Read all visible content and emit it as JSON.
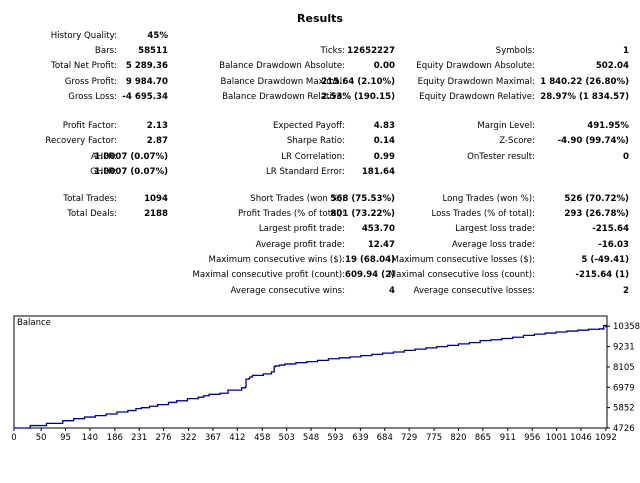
{
  "title": "Results",
  "stats": {
    "history_quality": {
      "label": "History Quality:",
      "value": "45%"
    },
    "bars": {
      "label": "Bars:",
      "value": "58511"
    },
    "ticks": {
      "label": "Ticks:",
      "value": "12652227"
    },
    "symbols": {
      "label": "Symbols:",
      "value": "1"
    },
    "total_net_profit": {
      "label": "Total Net Profit:",
      "value": "5 289.36"
    },
    "balance_dd_absolute": {
      "label": "Balance Drawdown Absolute:",
      "value": "0.00"
    },
    "equity_dd_absolute": {
      "label": "Equity Drawdown Absolute:",
      "value": "502.04"
    },
    "gross_profit": {
      "label": "Gross Profit:",
      "value": "9 984.70"
    },
    "balance_dd_maximal": {
      "label": "Balance Drawdown Maximal:",
      "value": "215.64 (2.10%)"
    },
    "equity_dd_maximal": {
      "label": "Equity Drawdown Maximal:",
      "value": "1 840.22 (26.80%)"
    },
    "gross_loss": {
      "label": "Gross Loss:",
      "value": "-4 695.34"
    },
    "balance_dd_relative": {
      "label": "Balance Drawdown Relative:",
      "value": "2.53% (190.15)"
    },
    "equity_dd_relative": {
      "label": "Equity Drawdown Relative:",
      "value": "28.97% (1 834.57)"
    },
    "profit_factor": {
      "label": "Profit Factor:",
      "value": "2.13"
    },
    "expected_payoff": {
      "label": "Expected Payoff:",
      "value": "4.83"
    },
    "margin_level": {
      "label": "Margin Level:",
      "value": "491.95%"
    },
    "recovery_factor": {
      "label": "Recovery Factor:",
      "value": "2.87"
    },
    "sharpe_ratio": {
      "label": "Sharpe Ratio:",
      "value": "0.14"
    },
    "z_score": {
      "label": "Z-Score:",
      "value": "-4.90 (99.74%)"
    },
    "ahpr": {
      "label": "AHPR:",
      "value": "1.0007 (0.07%)"
    },
    "lr_correlation": {
      "label": "LR Correlation:",
      "value": "0.99"
    },
    "ontester_result": {
      "label": "OnTester result:",
      "value": "0"
    },
    "ghpr": {
      "label": "GHPR:",
      "value": "1.0007 (0.07%)"
    },
    "lr_standard_error": {
      "label": "LR Standard Error:",
      "value": "181.64"
    },
    "total_trades": {
      "label": "Total Trades:",
      "value": "1094"
    },
    "short_trades": {
      "label": "Short Trades (won %):",
      "value": "568 (75.53%)"
    },
    "long_trades": {
      "label": "Long Trades (won %):",
      "value": "526 (70.72%)"
    },
    "total_deals": {
      "label": "Total Deals:",
      "value": "2188"
    },
    "profit_trades": {
      "label": "Profit Trades (% of total):",
      "value": "801 (73.22%)"
    },
    "loss_trades": {
      "label": "Loss Trades (% of total):",
      "value": "293 (26.78%)"
    },
    "largest_profit_trade": {
      "label": "Largest profit trade:",
      "value": "453.70"
    },
    "largest_loss_trade": {
      "label": "Largest loss trade:",
      "value": "-215.64"
    },
    "average_profit_trade": {
      "label": "Average profit trade:",
      "value": "12.47"
    },
    "average_loss_trade": {
      "label": "Average loss trade:",
      "value": "-16.03"
    },
    "max_consecutive_wins": {
      "label": "Maximum consecutive wins ($):",
      "value": "19 (68.04)"
    },
    "max_consecutive_losses": {
      "label": "Maximum consecutive losses ($):",
      "value": "5 (-49.41)"
    },
    "maximal_consecutive_profit": {
      "label": "Maximal consecutive profit (count):",
      "value": "609.94 (2)"
    },
    "maximal_consecutive_loss": {
      "label": "Maximal consecutive loss (count):",
      "value": "-215.64 (1)"
    },
    "average_consecutive_wins": {
      "label": "Average consecutive wins:",
      "value": "4"
    },
    "average_consecutive_losses": {
      "label": "Average consecutive losses:",
      "value": "2"
    }
  },
  "chart_data": {
    "type": "line",
    "legend": "Balance",
    "line_color": "#00008b",
    "x_ticks": [
      "0",
      "50",
      "95",
      "140",
      "186",
      "231",
      "276",
      "322",
      "367",
      "412",
      "458",
      "503",
      "548",
      "593",
      "639",
      "684",
      "729",
      "775",
      "820",
      "865",
      "911",
      "956",
      "1001",
      "1046",
      "1092"
    ],
    "y_ticks": [
      "10358",
      "9231",
      "8105",
      "6979",
      "5852",
      "4726"
    ],
    "xlim": [
      0,
      1094
    ],
    "ylim": [
      4726,
      10924
    ],
    "series": [
      {
        "x": [
          0,
          30,
          60,
          90,
          110,
          130,
          150,
          170,
          190,
          210,
          225,
          235,
          250,
          265,
          285,
          300,
          320,
          340,
          350,
          360,
          380,
          395,
          420,
          427,
          428,
          433,
          435,
          440,
          460,
          475,
          480,
          482,
          490,
          500,
          520,
          540,
          560,
          580,
          600,
          620,
          640,
          660,
          680,
          700,
          720,
          740,
          760,
          780,
          800,
          820,
          840,
          860,
          880,
          900,
          920,
          940,
          960,
          980,
          1000,
          1020,
          1040,
          1060,
          1080,
          1085,
          1088,
          1092,
          1094
        ],
        "y": [
          4726,
          4860,
          4980,
          5130,
          5240,
          5330,
          5410,
          5500,
          5610,
          5690,
          5800,
          5850,
          5930,
          6020,
          6140,
          6230,
          6350,
          6430,
          6510,
          6590,
          6650,
          6820,
          6950,
          7000,
          7430,
          7460,
          7550,
          7640,
          7720,
          7830,
          8120,
          8160,
          8210,
          8270,
          8340,
          8400,
          8470,
          8560,
          8610,
          8660,
          8730,
          8800,
          8870,
          8930,
          9020,
          9090,
          9160,
          9230,
          9300,
          9380,
          9450,
          9560,
          9610,
          9680,
          9750,
          9850,
          9920,
          9980,
          10040,
          10090,
          10140,
          10190,
          10220,
          10200,
          10400,
          10330,
          10358
        ]
      }
    ]
  }
}
